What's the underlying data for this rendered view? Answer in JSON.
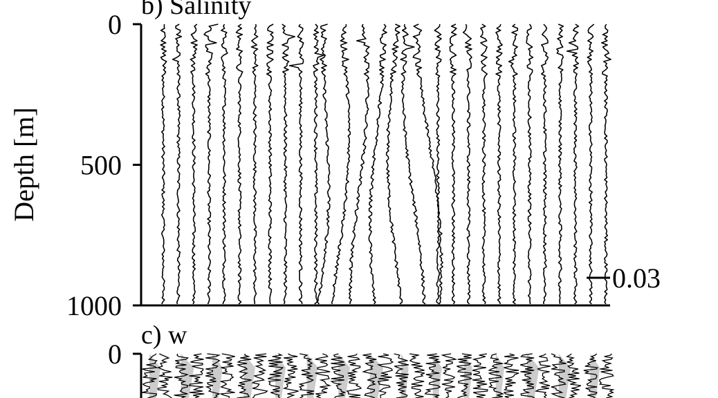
{
  "chart_data": [
    {
      "type": "line",
      "panel": "b",
      "title": "b) Salinity",
      "ylabel": "Depth [m]",
      "ylim": [
        1000,
        0
      ],
      "yticks": [
        0,
        500,
        1000
      ],
      "ytick_labels": [
        "0",
        "500",
        "1000"
      ],
      "scale_bar": {
        "value": 0.03,
        "label": "0.03"
      },
      "profile_count": 30,
      "series_color": "#000000"
    },
    {
      "type": "line",
      "panel": "c",
      "title": "c) w",
      "ylim": [
        1000,
        0
      ],
      "yticks": [
        0
      ],
      "ytick_labels": [
        "0"
      ],
      "shading_color": "#cccccc",
      "series_color": "#000000"
    }
  ]
}
